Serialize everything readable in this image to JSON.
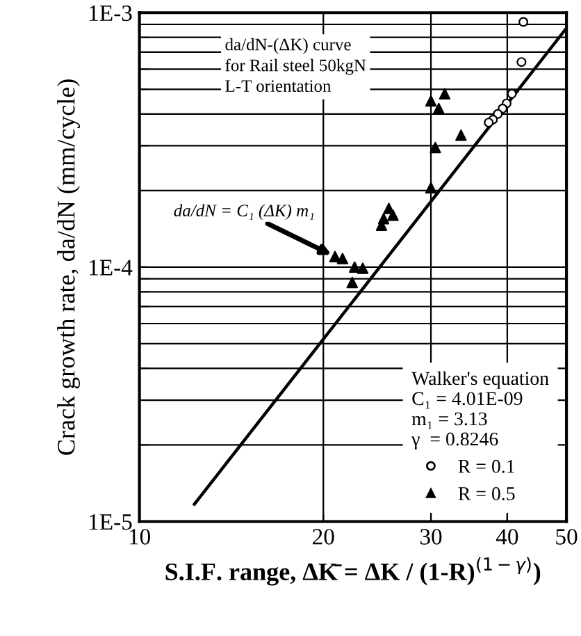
{
  "chart_data": {
    "type": "scatter",
    "xlabel": "S.I.F. range, ΔK̄ = ΔK / (1-R)$^{(1−γ)}$)",
    "ylabel": "Crack growth rate, da/dN (mm/cycle)",
    "legend_title": "Walker's equation\nC₁ = 4.01E-09\nm₁ = 3.13\nγ  = 0.8246",
    "annotations": [
      "da/dN-(ΔK) curve\nfor Rail steel 50kgN\nL-T orientation",
      {
        "text": "da/dN = C₁ (ΔK) m₁",
        "x": 20.9,
        "y": 0.00011
      }
    ],
    "log": "xy",
    "grid": true,
    "legend": "bottom right",
    "xlim": [
      10,
      50
    ],
    "xticks": [
      10,
      20,
      30,
      40,
      50
    ],
    "ylim": [
      1e-05,
      0.001
    ],
    "yticks": [
      {
        "value": 1e-05,
        "label": "1E-5"
      },
      {
        "value": 0.0001,
        "label": "1E-4"
      },
      {
        "value": 0.001,
        "label": "1E-3"
      }
    ],
    "series": [
      {
        "name": "R = 0.1",
        "marker": "circle",
        "color": "#000000",
        "x": [
          42.5,
          42.2,
          40.7,
          39.9,
          39.3,
          38.6,
          37.9,
          37.3
        ],
        "values": [
          0.00092,
          0.00064,
          0.00048,
          0.00044,
          0.00042,
          0.0004,
          0.00038,
          0.00037
        ]
      },
      {
        "name": "R = 0.5",
        "marker": "triangle",
        "color": "#000000",
        "x": [
          31.6,
          30.0,
          30.9,
          33.6,
          30.5,
          30.0,
          25.6,
          26.0,
          25.1,
          24.9,
          20.9,
          21.5,
          22.5,
          23.2,
          22.3
        ],
        "values": [
          0.00048,
          0.00045,
          0.00042,
          0.00033,
          0.000295,
          0.000205,
          0.00017,
          0.00016,
          0.000155,
          0.000146,
          0.00011,
          0.000108,
          0.0001,
          9.9e-05,
          8.7e-05
        ]
      },
      {
        "type": "line",
        "marker": "none",
        "line_style": "solid",
        "color": "#000000",
        "x": [
          12.3,
          50
        ],
        "values": [
          1.17e-05,
          0.00087
        ]
      }
    ]
  }
}
